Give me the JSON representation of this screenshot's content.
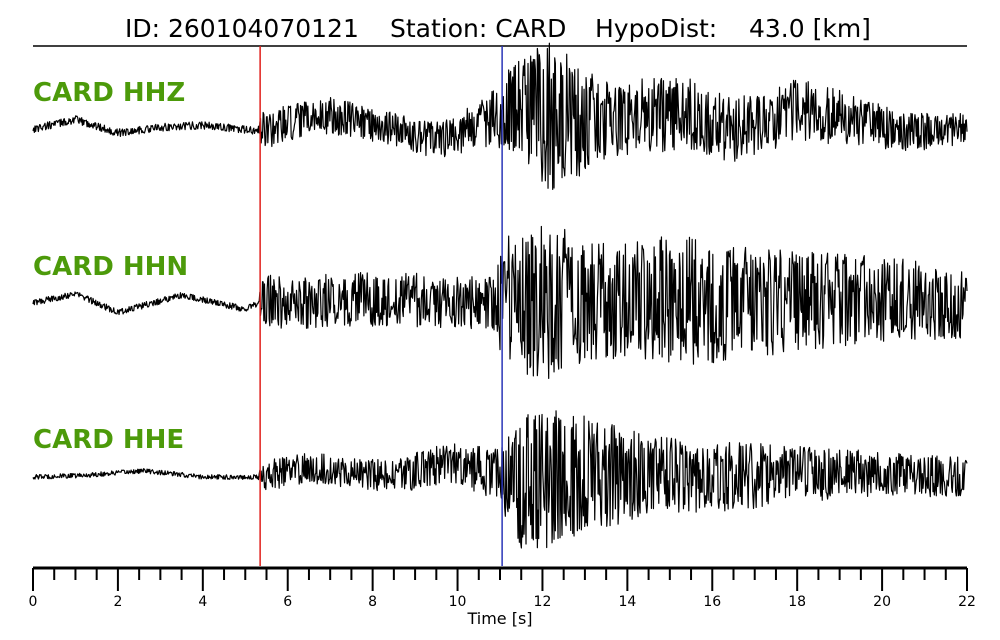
{
  "title": {
    "id_text": "ID: 260104070121",
    "station_text": "Station: CARD",
    "dist_text": "HypoDist:    43.0 [km]"
  },
  "colors": {
    "channel_label": "#4c9a0a",
    "p_pick": "#e0201b",
    "s_pick": "#2a35b8",
    "trace": "#000000"
  },
  "chart_data": {
    "type": "line",
    "xlabel": "Time [s]",
    "xlim": [
      0,
      22
    ],
    "major_ticks": [
      0,
      2,
      4,
      6,
      8,
      10,
      12,
      14,
      16,
      18,
      20,
      22
    ],
    "minor_tick_step": 0.5,
    "picks": [
      {
        "phase": "P",
        "time": 5.35
      },
      {
        "phase": "S",
        "time": 11.05
      }
    ],
    "series": [
      {
        "name": "CARD HHZ",
        "envelope": [
          [
            0,
            0.05
          ],
          [
            5.3,
            0.05
          ],
          [
            5.4,
            0.25
          ],
          [
            9.0,
            0.22
          ],
          [
            10.5,
            0.3
          ],
          [
            11.0,
            0.45
          ],
          [
            12.2,
            1.0
          ],
          [
            13.5,
            0.5
          ],
          [
            16.0,
            0.45
          ],
          [
            18.5,
            0.38
          ],
          [
            20.5,
            0.25
          ],
          [
            22,
            0.2
          ]
        ],
        "baseline": [
          [
            0,
            0.0
          ],
          [
            1.0,
            0.12
          ],
          [
            2.0,
            -0.05
          ],
          [
            3.0,
            0.02
          ],
          [
            4.0,
            0.05
          ],
          [
            5.3,
            -0.03
          ],
          [
            7.0,
            0.18
          ],
          [
            8.5,
            0.0
          ],
          [
            9.5,
            -0.15
          ],
          [
            10.5,
            0.05
          ],
          [
            11.3,
            0.3
          ],
          [
            12.5,
            0.1
          ],
          [
            14.0,
            0.15
          ],
          [
            15.5,
            0.2
          ],
          [
            16.5,
            -0.05
          ],
          [
            18.0,
            0.25
          ],
          [
            19.5,
            0.1
          ],
          [
            20.5,
            -0.05
          ],
          [
            22,
            0.0
          ]
        ]
      },
      {
        "name": "CARD HHN",
        "envelope": [
          [
            0,
            0.04
          ],
          [
            5.3,
            0.04
          ],
          [
            5.4,
            0.35
          ],
          [
            10.9,
            0.35
          ],
          [
            11.1,
            0.9
          ],
          [
            12.3,
            1.0
          ],
          [
            13.5,
            0.75
          ],
          [
            15.5,
            0.85
          ],
          [
            17.0,
            0.7
          ],
          [
            19.0,
            0.6
          ],
          [
            22,
            0.45
          ]
        ],
        "baseline": [
          [
            0,
            0.0
          ],
          [
            1.0,
            0.12
          ],
          [
            2.0,
            -0.12
          ],
          [
            3.5,
            0.1
          ],
          [
            5.0,
            -0.08
          ],
          [
            5.3,
            0.0
          ],
          [
            8.0,
            0.05
          ],
          [
            11.0,
            0.0
          ],
          [
            14.0,
            0.05
          ],
          [
            17.0,
            0.0
          ],
          [
            20.0,
            0.05
          ],
          [
            22,
            0.0
          ]
        ]
      },
      {
        "name": "CARD HHE",
        "envelope": [
          [
            0,
            0.03
          ],
          [
            5.3,
            0.03
          ],
          [
            5.4,
            0.2
          ],
          [
            8.0,
            0.2
          ],
          [
            9.5,
            0.25
          ],
          [
            11.0,
            0.35
          ],
          [
            11.6,
            1.0
          ],
          [
            13.0,
            0.8
          ],
          [
            14.5,
            0.5
          ],
          [
            17.0,
            0.42
          ],
          [
            19.5,
            0.3
          ],
          [
            22,
            0.25
          ]
        ],
        "baseline": [
          [
            0,
            0.0
          ],
          [
            1.2,
            0.02
          ],
          [
            2.6,
            0.08
          ],
          [
            4.0,
            0.0
          ],
          [
            5.3,
            0.0
          ],
          [
            6.5,
            0.12
          ],
          [
            8.5,
            0.0
          ],
          [
            9.7,
            0.18
          ],
          [
            10.5,
            0.1
          ],
          [
            11.2,
            -0.05
          ],
          [
            13.0,
            0.05
          ],
          [
            16.0,
            0.0
          ],
          [
            19.0,
            0.05
          ],
          [
            22,
            0.0
          ]
        ]
      }
    ]
  }
}
